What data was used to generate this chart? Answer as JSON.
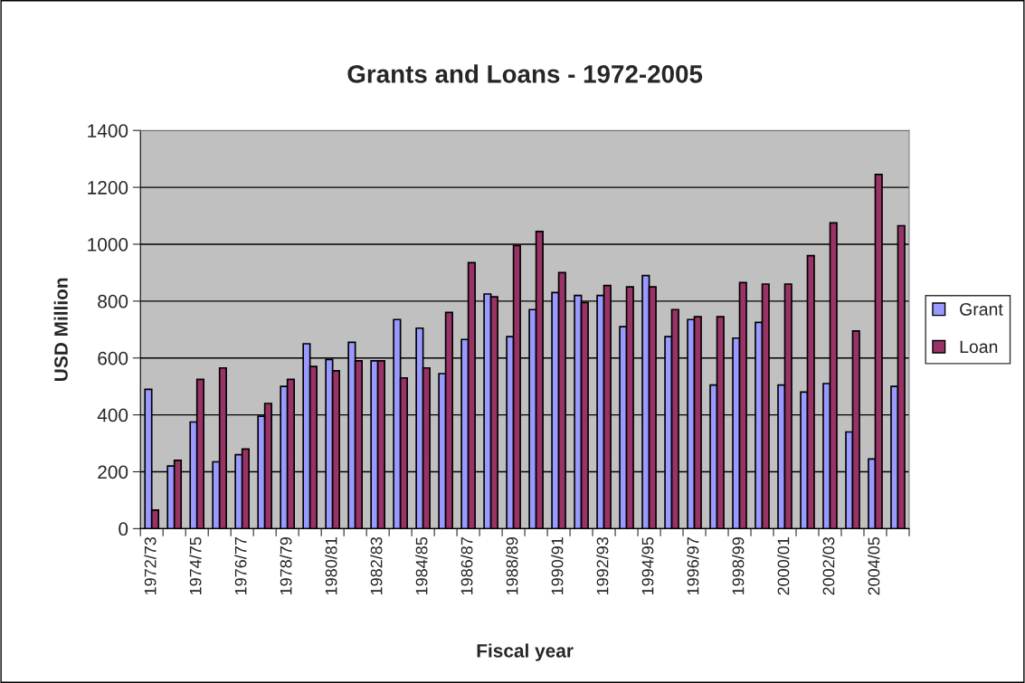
{
  "chart_data": {
    "type": "bar",
    "title": "Grants and Loans - 1972-2005",
    "xlabel": "Fiscal year",
    "ylabel": "USD Million",
    "categories": [
      "1972/73",
      null,
      "1974/75",
      null,
      "1976/77",
      null,
      "1978/79",
      null,
      "1980/81",
      null,
      "1982/83",
      null,
      "1984/85",
      null,
      "1986/87",
      null,
      "1988/89",
      null,
      "1990/91",
      null,
      "1992/93",
      null,
      "1994/95",
      null,
      "1996/97",
      null,
      "1998/99",
      null,
      "2000/01",
      null,
      "2002/03",
      null,
      "2004/05",
      null
    ],
    "series": [
      {
        "name": "Grant",
        "color": "#9999ff",
        "values": [
          490,
          220,
          375,
          235,
          260,
          395,
          500,
          650,
          595,
          655,
          590,
          735,
          705,
          545,
          665,
          825,
          675,
          770,
          830,
          820,
          820,
          710,
          890,
          675,
          735,
          505,
          670,
          725,
          505,
          480,
          510,
          340,
          245,
          500
        ]
      },
      {
        "name": "Loan",
        "color": "#993366",
        "values": [
          65,
          240,
          525,
          565,
          280,
          440,
          525,
          570,
          555,
          590,
          590,
          530,
          565,
          760,
          935,
          815,
          995,
          1045,
          900,
          795,
          855,
          850,
          850,
          770,
          745,
          745,
          865,
          860,
          860,
          960,
          1075,
          695,
          1245,
          1065
        ]
      }
    ],
    "ylim": [
      0,
      1400
    ],
    "yticks": [
      0,
      200,
      400,
      600,
      800,
      1000,
      1200,
      1400
    ],
    "grid": "y",
    "legend": "right"
  }
}
